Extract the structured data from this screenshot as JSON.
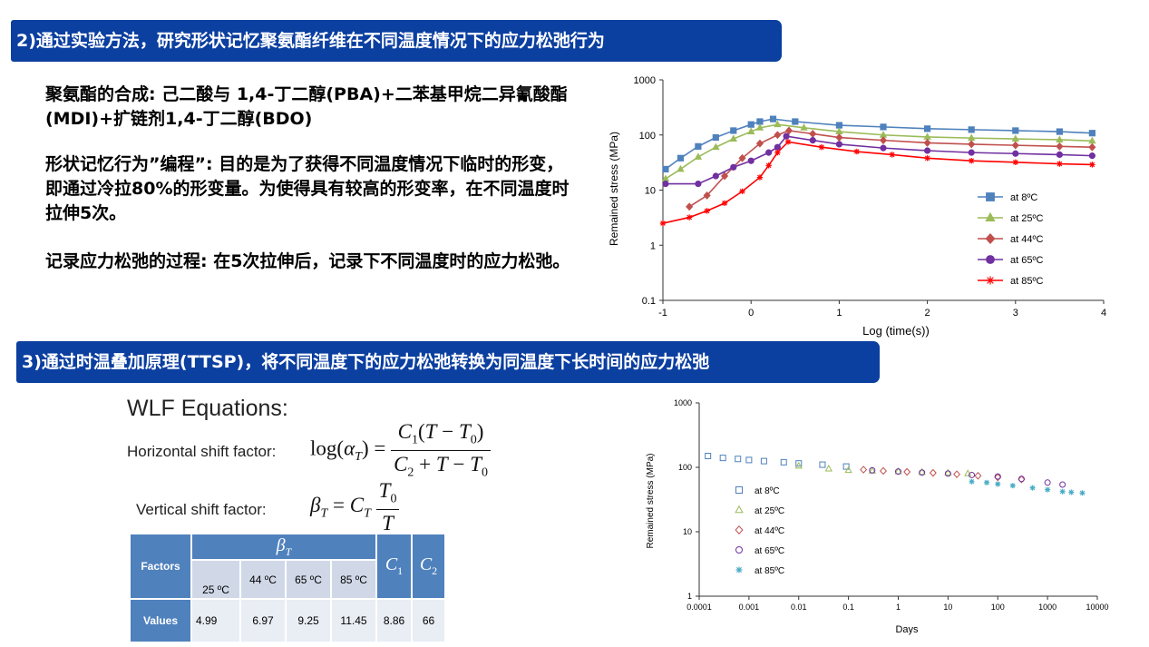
{
  "section2": {
    "banner": "2)通过实验方法，研究形状记忆聚氨酯纤维在不同温度情况下的应力松弛行为",
    "para1": "聚氨酯的合成: 己二酸与 1,4-丁二醇(PBA)+二苯基甲烷二异氰酸酯(MDI)+扩链剂1,4-丁二醇(BDO)",
    "para2": "形状记忆行为”编程”: 目的是为了获得不同温度情况下临时的形变，即通过冷拉80%的形变量。为使得具有较高的形变率，在不同温度时拉伸5次。",
    "para3": "记录应力松弛的过程: 在5次拉伸后，记录下不同温度时的应力松弛。"
  },
  "section3": {
    "banner": "3)通过时温叠加原理(TTSP)，将不同温度下的应力松弛转换为同温度下长时间的应力松弛",
    "wlf_title": "WLF Equations:",
    "horizontal_label": "Horizontal shift factor:",
    "vertical_label": "Vertical shift factor:",
    "table": {
      "row_header_factors": "Factors",
      "row_header_values": "Values",
      "sub_headers": [
        "25 ºC",
        "44 ºC",
        "65 ºC",
        "85 ºC"
      ],
      "values": [
        "4.99",
        "6.97",
        "9.25",
        "11.45",
        "8.86",
        "66"
      ]
    }
  },
  "chart_data": [
    {
      "type": "line",
      "xlabel": "Log (time(s))",
      "ylabel": "Remained stress (MPa)",
      "x_ticks": [
        "-1",
        "0",
        "1",
        "2",
        "3",
        "4"
      ],
      "y_ticks": [
        "0.1",
        "1",
        "10",
        "100",
        "1000"
      ],
      "xlim": [
        -1,
        4
      ],
      "ylim": [
        0.1,
        1000
      ],
      "y_scale": "log",
      "legend_position": "right",
      "series": [
        {
          "name": "at 8ºC",
          "color": "#4f81bd",
          "marker": "square",
          "x": [
            -0.97,
            -0.8,
            -0.6,
            -0.4,
            -0.2,
            0.0,
            0.1,
            0.25,
            0.5,
            1.0,
            1.5,
            2.0,
            2.5,
            3.0,
            3.5,
            3.87
          ],
          "y": [
            24,
            38,
            62,
            90,
            120,
            155,
            175,
            195,
            175,
            150,
            140,
            130,
            125,
            120,
            115,
            108
          ]
        },
        {
          "name": "at 25ºC",
          "color": "#9bbb59",
          "marker": "triangle",
          "x": [
            -0.97,
            -0.8,
            -0.6,
            -0.4,
            -0.2,
            0.0,
            0.1,
            0.3,
            0.6,
            1.0,
            1.5,
            2.0,
            2.5,
            3.0,
            3.5,
            3.87
          ],
          "y": [
            16,
            24,
            40,
            60,
            85,
            115,
            135,
            155,
            135,
            115,
            100,
            92,
            88,
            85,
            82,
            78
          ]
        },
        {
          "name": "at 44ºC",
          "color": "#c0504d",
          "marker": "diamond",
          "x": [
            -0.7,
            -0.5,
            -0.3,
            -0.1,
            0.1,
            0.3,
            0.43,
            0.7,
            1.0,
            1.5,
            2.0,
            2.5,
            3.0,
            3.5,
            3.87
          ],
          "y": [
            5,
            8,
            18,
            38,
            70,
            100,
            120,
            105,
            90,
            80,
            72,
            68,
            65,
            62,
            60
          ]
        },
        {
          "name": "at 65ºC",
          "color": "#7030a0",
          "marker": "circle",
          "x": [
            -0.97,
            -0.6,
            -0.4,
            -0.2,
            0.0,
            0.2,
            0.3,
            0.4,
            0.7,
            1.0,
            1.5,
            2.0,
            2.5,
            3.0,
            3.5,
            3.87
          ],
          "y": [
            13,
            13,
            18,
            26,
            34,
            48,
            60,
            95,
            80,
            68,
            58,
            52,
            48,
            46,
            44,
            42
          ]
        },
        {
          "name": "at 85ºC",
          "color": "#ff0000",
          "marker": "star",
          "x": [
            -1.0,
            -0.7,
            -0.5,
            -0.3,
            -0.1,
            0.1,
            0.2,
            0.3,
            0.42,
            0.8,
            1.2,
            1.6,
            2.0,
            2.5,
            3.0,
            3.5,
            3.87
          ],
          "y": [
            2.5,
            3.2,
            4.2,
            5.8,
            9.5,
            17,
            28,
            48,
            75,
            60,
            50,
            44,
            38,
            34,
            32,
            30,
            29
          ]
        }
      ]
    },
    {
      "type": "scatter",
      "xlabel": "Days",
      "ylabel": "Remained stress (MPa)",
      "x_ticks": [
        "0.0001",
        "0.001",
        "0.01",
        "0.1",
        "1",
        "10",
        "100",
        "1000",
        "10000"
      ],
      "y_ticks": [
        "1",
        "10",
        "100",
        "1000"
      ],
      "xlim": [
        0.0001,
        10000
      ],
      "ylim": [
        1,
        1000
      ],
      "x_scale": "log",
      "y_scale": "log",
      "legend_position": "left",
      "series": [
        {
          "name": "at  8ºC",
          "color": "#4f81bd",
          "marker": "square",
          "x": [
            0.00015,
            0.0003,
            0.0006,
            0.001,
            0.002,
            0.005,
            0.01,
            0.03,
            0.09
          ],
          "y": [
            150,
            140,
            135,
            130,
            125,
            120,
            115,
            110,
            103
          ]
        },
        {
          "name": "at  25ºC",
          "color": "#9bbb59",
          "marker": "triangle",
          "x": [
            0.01,
            0.04,
            0.1,
            0.3,
            1,
            3,
            10,
            25
          ],
          "y": [
            105,
            95,
            90,
            88,
            86,
            84,
            82,
            80
          ]
        },
        {
          "name": "at  44ºC",
          "color": "#c0504d",
          "marker": "diamond",
          "x": [
            0.2,
            0.5,
            1.5,
            5,
            15,
            40,
            100,
            300
          ],
          "y": [
            92,
            88,
            85,
            82,
            78,
            74,
            70,
            65
          ]
        },
        {
          "name": "at  65ºC",
          "color": "#7030a0",
          "marker": "circle",
          "x": [
            0.3,
            1,
            3,
            10,
            30,
            100,
            300,
            1000,
            2000
          ],
          "y": [
            90,
            86,
            83,
            80,
            76,
            72,
            66,
            58,
            54
          ]
        },
        {
          "name": "at  85ºC",
          "color": "#4bacc6",
          "marker": "star",
          "x": [
            30,
            60,
            100,
            200,
            500,
            1000,
            2000,
            3000,
            5000
          ],
          "y": [
            60,
            58,
            55,
            52,
            48,
            45,
            42,
            41,
            40
          ]
        }
      ]
    }
  ]
}
